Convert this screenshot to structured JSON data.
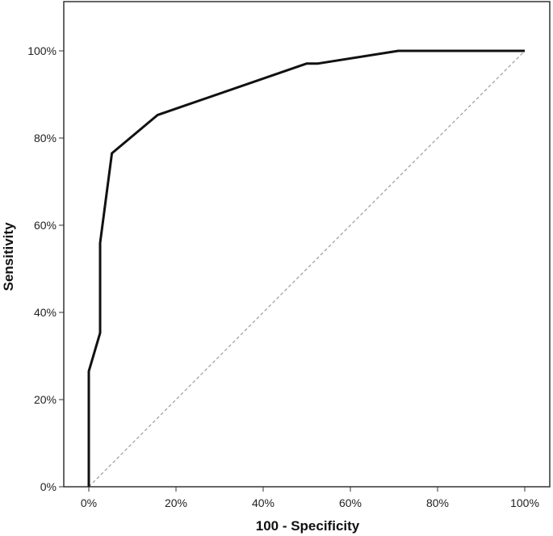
{
  "chart_data": {
    "type": "line",
    "title": "",
    "xlabel": "100 - Specificity",
    "ylabel": "Sensitivity",
    "xlim": [
      0,
      100
    ],
    "ylim": [
      0,
      100
    ],
    "x_ticks": [
      "0%",
      "20%",
      "40%",
      "60%",
      "80%",
      "100%"
    ],
    "y_ticks": [
      "0%",
      "20%",
      "40%",
      "60%",
      "80%",
      "100%"
    ],
    "grid": false,
    "legend": "none",
    "series": [
      {
        "x": [
          0,
          0,
          2.6,
          2.6,
          5.3,
          15.8,
          50,
          52.6,
          71,
          100
        ],
        "y": [
          0,
          26.5,
          35.3,
          55.9,
          76.5,
          85.3,
          97.1,
          97.1,
          100,
          100
        ],
        "color": "#111111",
        "style": "solid"
      },
      {
        "x": [
          0,
          100
        ],
        "y": [
          0,
          100
        ],
        "color": "#888888",
        "style": "dashed"
      }
    ]
  }
}
